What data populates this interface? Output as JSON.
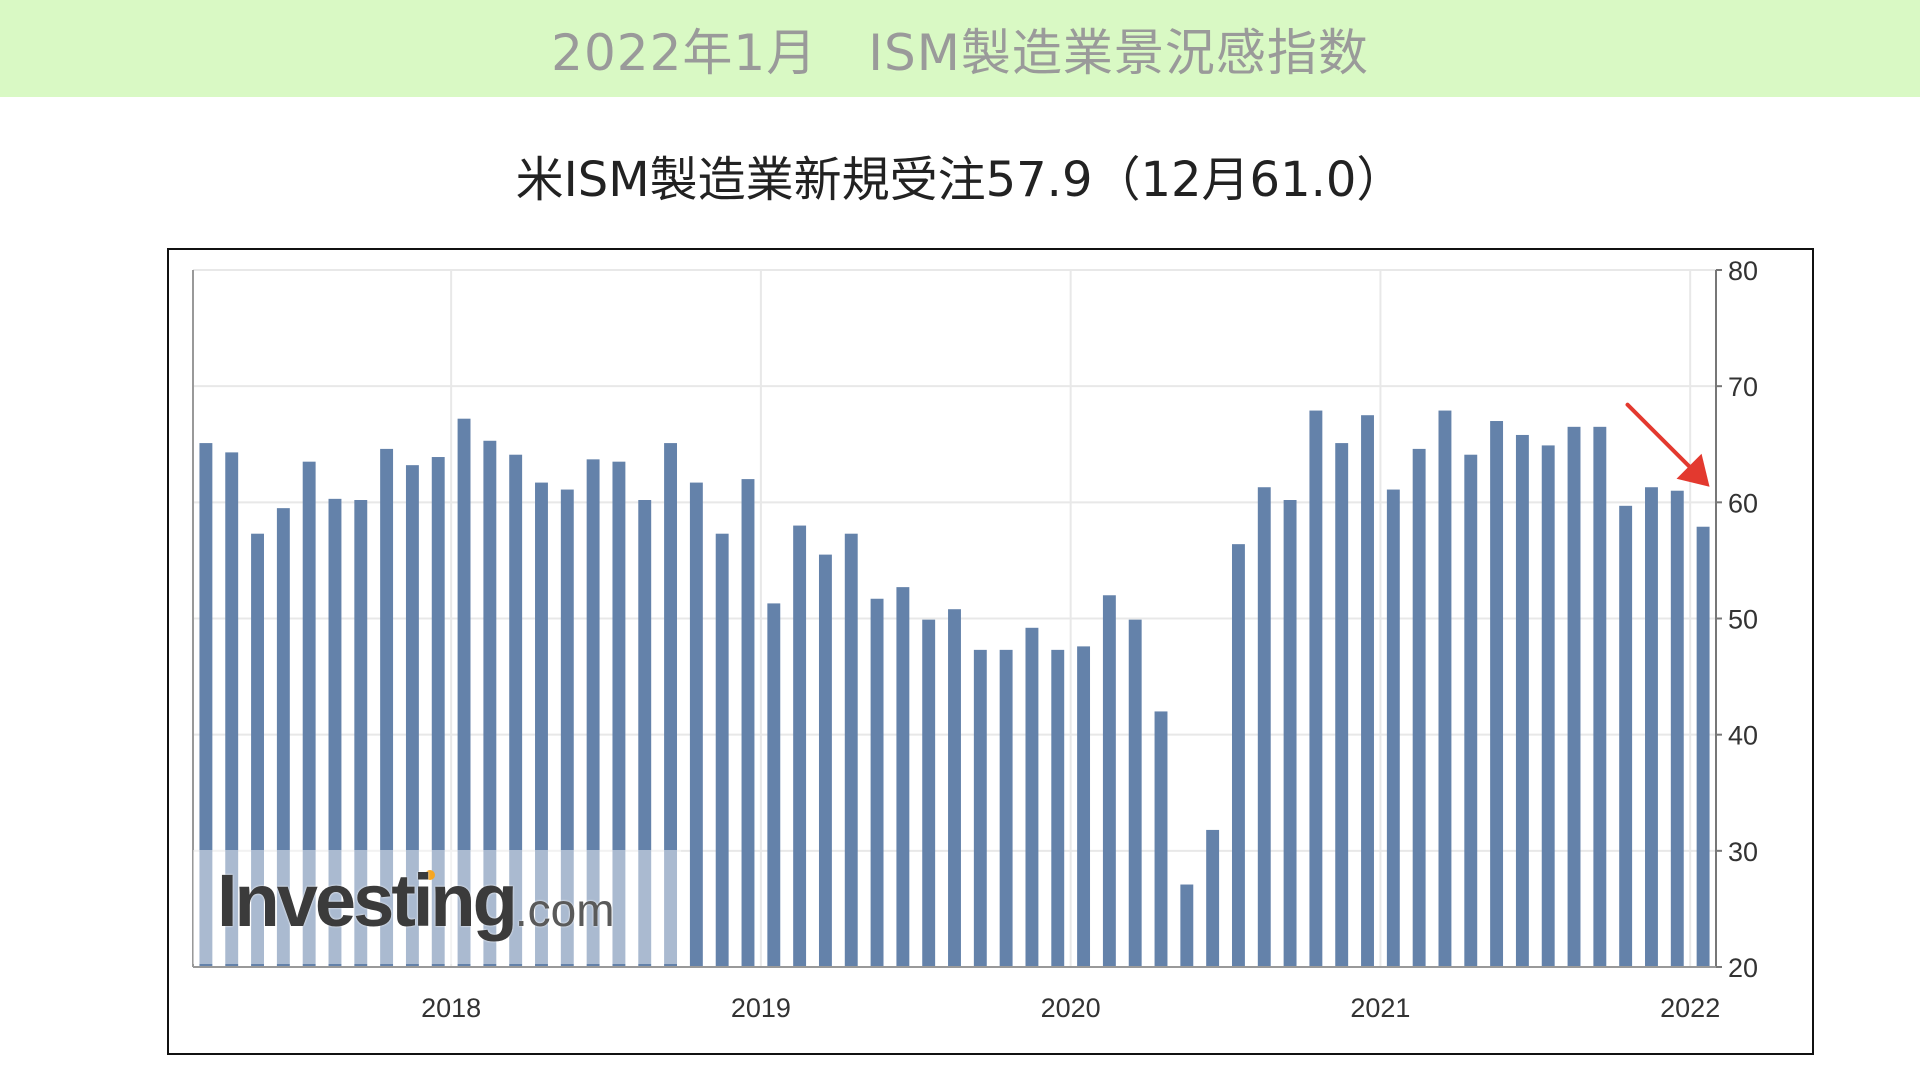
{
  "header": {
    "title": "2022年1月　ISM製造業景況感指数"
  },
  "chart_title": "米ISM製造業新規受注57.9（12月61.0）",
  "watermark": {
    "brand": "Investing",
    "suffix": ".com"
  },
  "chart_data": {
    "type": "bar",
    "x_labels": [
      "2018",
      "2019",
      "2020",
      "2021",
      "2022"
    ],
    "y_ticks": [
      80,
      70,
      60,
      50,
      40,
      30,
      20
    ],
    "ylim": [
      20,
      80
    ],
    "y_axis_side": "right",
    "grid": true,
    "bar_color": "#6482aa",
    "annotation": {
      "type": "arrow",
      "color": "#e3392f",
      "points_to_month": "2021-12"
    },
    "months": [
      "2017-03",
      "2017-04",
      "2017-05",
      "2017-06",
      "2017-07",
      "2017-08",
      "2017-09",
      "2017-10",
      "2017-11",
      "2017-12",
      "2018-01",
      "2018-02",
      "2018-03",
      "2018-04",
      "2018-05",
      "2018-06",
      "2018-07",
      "2018-08",
      "2018-09",
      "2018-10",
      "2018-11",
      "2018-12",
      "2019-01",
      "2019-02",
      "2019-03",
      "2019-04",
      "2019-05",
      "2019-06",
      "2019-07",
      "2019-08",
      "2019-09",
      "2019-10",
      "2019-11",
      "2019-12",
      "2020-01",
      "2020-02",
      "2020-03",
      "2020-04",
      "2020-05",
      "2020-06",
      "2020-07",
      "2020-08",
      "2020-09",
      "2020-10",
      "2020-11",
      "2020-12",
      "2021-01",
      "2021-02",
      "2021-03",
      "2021-04",
      "2021-05",
      "2021-06",
      "2021-07",
      "2021-08",
      "2021-09",
      "2021-10",
      "2021-11",
      "2021-12",
      "2022-01"
    ],
    "values": [
      65.1,
      64.3,
      57.3,
      59.5,
      63.5,
      60.3,
      60.2,
      64.6,
      63.2,
      63.9,
      67.2,
      65.3,
      64.1,
      61.7,
      61.1,
      63.7,
      63.5,
      60.2,
      65.1,
      61.7,
      57.3,
      62.0,
      51.3,
      58.0,
      55.5,
      57.3,
      51.7,
      52.7,
      49.9,
      50.8,
      47.3,
      47.3,
      49.2,
      47.3,
      47.6,
      52.0,
      49.9,
      42.0,
      27.1,
      31.8,
      56.4,
      61.3,
      60.2,
      67.9,
      65.1,
      67.5,
      61.1,
      64.6,
      67.9,
      64.1,
      67.0,
      65.8,
      64.9,
      66.5,
      66.5,
      59.7,
      61.3,
      61.0,
      57.9
    ]
  }
}
